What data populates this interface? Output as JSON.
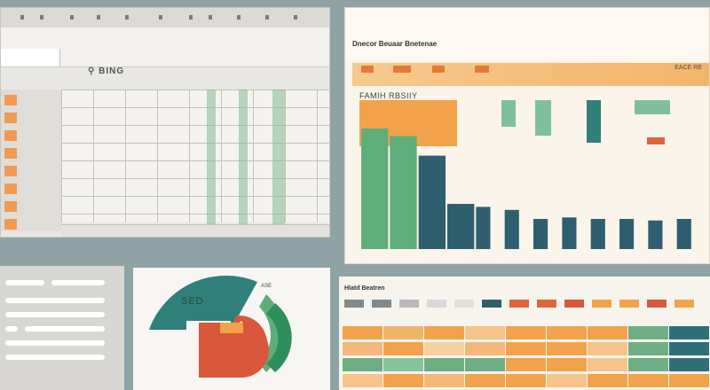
{
  "sheet": {
    "toolbar_text": "BING",
    "toolbar_glyph": "⚲",
    "left_labels_count": 9
  },
  "chart_panel": {
    "title": "Dnecor Beuaar Bnetenae",
    "subtitle": "FAMIH RBSIIY",
    "right_label": "EACE RE",
    "colors": {
      "orange": "#f2a24a",
      "teal": "#2f5f6f",
      "green": "#5fae7a",
      "mint": "#7fbfa0",
      "red": "#e0653a"
    }
  },
  "chart_data": {
    "type": "bar",
    "categories": [
      "",
      "",
      "",
      "",
      "",
      "",
      "",
      "",
      "",
      "",
      "",
      ""
    ],
    "series": [
      {
        "values": [
          80,
          75,
          62,
          30,
          28,
          26,
          20,
          21,
          20,
          20,
          19,
          20
        ]
      }
    ],
    "ylim": [
      0,
      100
    ],
    "grid": false
  },
  "pie_panel": {
    "label": "SED",
    "small_label": "ASE",
    "colors": [
      "#2f7f7a",
      "#d9573a",
      "#f2a24a",
      "#6fbf8a"
    ]
  },
  "table_panel": {
    "title": "Hlatd Beatren",
    "header_swatches": [
      "#7f8a8c",
      "#7f8a8c",
      "#b9b9b9",
      "#d9d9d9",
      "#e1e1e1",
      "#2f5f6f",
      "#e0653a",
      "#e0653a",
      "#d9573a",
      "#f2a24a",
      "#f2a24a",
      "#d9573a",
      "#f2a24a"
    ],
    "row_colors": [
      [
        "#f2a24a",
        "#f0b46a",
        "#f2a24a",
        "#f6c48a",
        "#f2a24a",
        "#f2a24a",
        "#f2a24a",
        "#6fae84",
        "#2f6f7a"
      ],
      [
        "#f4b77a",
        "#f2a24a",
        "#f7d19f",
        "#f4b77a",
        "#f2a24a",
        "#f2a24a",
        "#f6c48a",
        "#6fae84",
        "#2f6f7a"
      ],
      [
        "#6fae84",
        "#86c39a",
        "#6fae84",
        "#6fae84",
        "#f2a24a",
        "#f2a24a",
        "#f6c48a",
        "#6fae84",
        "#2f6f7a"
      ],
      [
        "#f6c48a",
        "#f2a24a",
        "#f4b77a",
        "#f2a24a",
        "#f2a24a",
        "#f6c48a",
        "#f2a24a",
        "#f2a24a",
        "#f2a24a"
      ]
    ]
  }
}
